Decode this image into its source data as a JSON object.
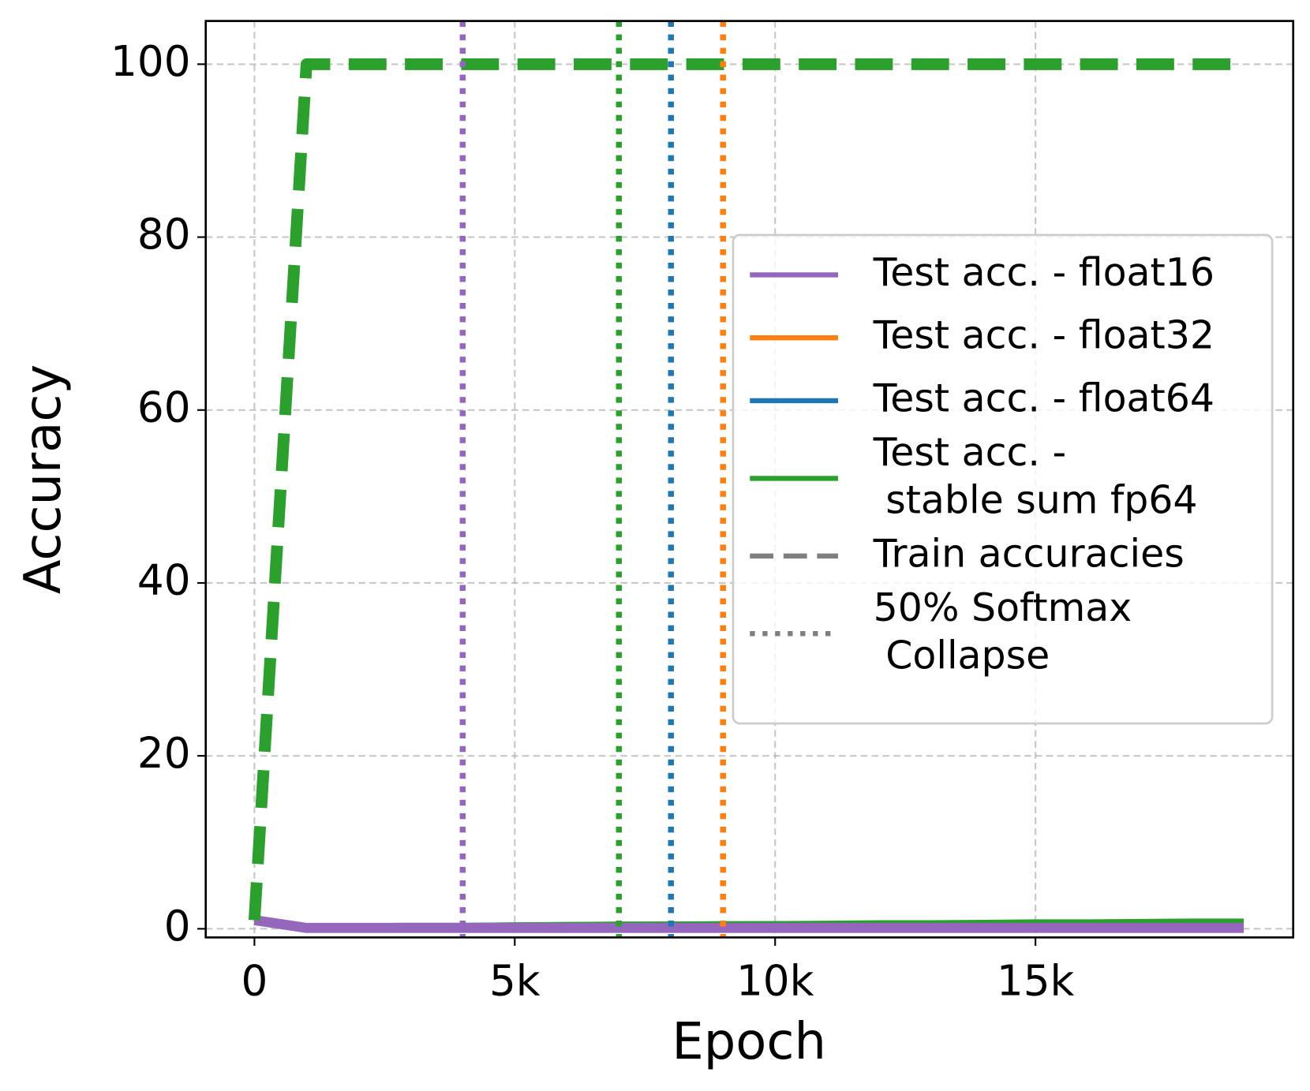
{
  "chart_data": {
    "type": "line",
    "xlabel": "Epoch",
    "ylabel": "Accuracy",
    "x": [
      0,
      1000,
      2000,
      3000,
      4000,
      5000,
      6000,
      7000,
      8000,
      9000,
      10000,
      11000,
      12000,
      13000,
      14000,
      15000,
      16000,
      17000,
      18000,
      19000
    ],
    "series": [
      {
        "name": "Test acc. - float16",
        "color": "#9467bd",
        "values": [
          1,
          0.1,
          0.1,
          0.1,
          0.1,
          0.1,
          0.1,
          0.1,
          0.1,
          0.1,
          0.1,
          0.1,
          0.1,
          0.1,
          0.1,
          0.1,
          0.1,
          0.1,
          0.1,
          0.1
        ]
      },
      {
        "name": "Test acc. - float32",
        "color": "#ff7f0e",
        "values": [
          1,
          0.2,
          0.2,
          0.2,
          0.2,
          0.2,
          0.2,
          0.2,
          0.2,
          0.2,
          0.2,
          0.2,
          0.2,
          0.2,
          0.2,
          0.2,
          0.2,
          0.2,
          0.2,
          0.2
        ]
      },
      {
        "name": "Test acc. - float64",
        "color": "#1f77b4",
        "values": [
          1,
          0.2,
          0.25,
          0.3,
          0.3,
          0.35,
          0.4,
          0.4,
          0.45,
          0.45,
          0.5,
          0.5,
          0.55,
          0.55,
          0.6,
          0.6,
          0.65,
          0.65,
          0.7,
          0.7
        ]
      },
      {
        "name": "Test acc. -\n stable sum fp64",
        "color": "#2ca02c",
        "values": [
          1,
          0.2,
          0.25,
          0.3,
          0.3,
          0.35,
          0.4,
          0.45,
          0.45,
          0.5,
          0.5,
          0.55,
          0.6,
          0.6,
          0.65,
          0.7,
          0.7,
          0.75,
          0.8,
          0.8
        ]
      }
    ],
    "train_series": [
      {
        "color": "#2ca02c",
        "values": [
          1,
          100,
          100,
          100,
          100,
          100,
          100,
          100,
          100,
          100,
          100,
          100,
          100,
          100,
          100,
          100,
          100,
          100,
          100,
          100
        ]
      }
    ],
    "collapse_lines": [
      {
        "x": 4000,
        "color": "#9467bd"
      },
      {
        "x": 7000,
        "color": "#2ca02c"
      },
      {
        "x": 8000,
        "color": "#1f77b4"
      },
      {
        "x": 9000,
        "color": "#ff7f0e"
      }
    ],
    "legend_styles": [
      {
        "name": "Train accuracies",
        "color": "#7f7f7f",
        "dash": "dashed"
      },
      {
        "name": "50% Softmax\n Collapse",
        "color": "#7f7f7f",
        "dash": "dotted"
      }
    ],
    "legend": "center right",
    "grid": true,
    "xlim": [
      -935,
      19950
    ],
    "ylim": [
      -1,
      105
    ],
    "xticks": [
      0,
      {
        "value": 5000,
        "label": "5k"
      },
      {
        "value": 10000,
        "label": "10k"
      },
      {
        "value": 15000,
        "label": "15k"
      }
    ],
    "yticks": [
      0,
      20,
      40,
      60,
      80,
      100
    ]
  }
}
